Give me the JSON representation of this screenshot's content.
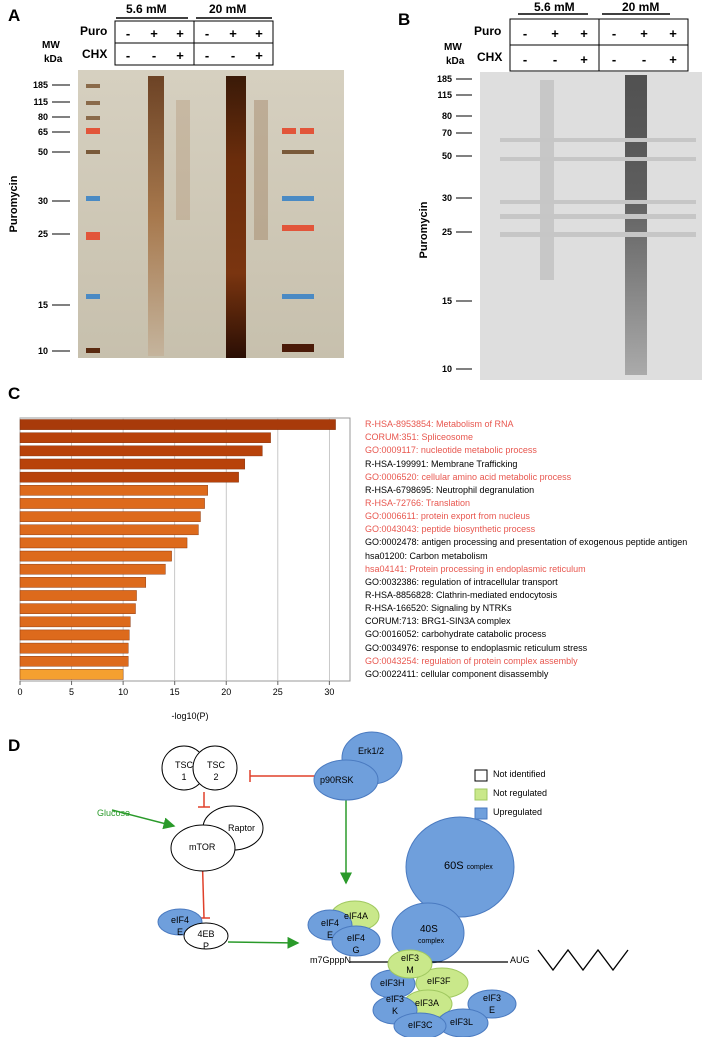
{
  "panelA": {
    "letter": "A",
    "conc_low": "5.6 mM",
    "conc_high": "20 mM",
    "row1_label": "Puro",
    "row2_label": "CHX",
    "mw_label_1": "MW",
    "mw_label_2": "kDa",
    "puro": [
      "-",
      "+",
      "+",
      "-",
      "+",
      "+"
    ],
    "chx": [
      "-",
      "-",
      "+",
      "-",
      "-",
      "+"
    ],
    "markers": [
      "185",
      "115",
      "80",
      "65",
      "50",
      "30",
      "25",
      "15",
      "10"
    ],
    "ylabel": "Puromycin"
  },
  "panelB": {
    "letter": "B",
    "conc_low": "5.6 mM",
    "conc_high": "20 mM",
    "row1_label": "Puro",
    "row2_label": "CHX",
    "mw_label_1": "MW",
    "mw_label_2": "kDa",
    "puro": [
      "-",
      "+",
      "+",
      "-",
      "+",
      "+"
    ],
    "chx": [
      "-",
      "-",
      "+",
      "-",
      "-",
      "+"
    ],
    "markers": [
      "185",
      "115",
      "80",
      "70",
      "50",
      "30",
      "25",
      "15",
      "10"
    ],
    "ylabel": "Puromycin"
  },
  "panelC": {
    "letter": "C"
  },
  "chart_data": {
    "type": "bar",
    "orientation": "horizontal",
    "xlabel": "-log10(P)",
    "xlim": [
      0,
      32
    ],
    "xticks": [
      0,
      5,
      10,
      15,
      20,
      25,
      30
    ],
    "categories": [
      "R-HSA-8953854: Metabolism of RNA",
      "CORUM:351: Spliceosome",
      "GO:0009117: nucleotide metabolic process",
      "R-HSA-199991: Membrane Trafficking",
      "GO:0006520: cellular amino acid metabolic process",
      "R-HSA-6798695: Neutrophil degranulation",
      "R-HSA-72766: Translation",
      "GO:0006611: protein export from nucleus",
      "GO:0043043: peptide biosynthetic process",
      "GO:0002478: antigen processing and presentation of exogenous peptide antigen",
      "hsa01200: Carbon metabolism",
      "hsa04141: Protein processing in endoplasmic reticulum",
      "GO:0032386: regulation of intracellular transport",
      "R-HSA-8856828: Clathrin-mediated endocytosis",
      "R-HSA-166520: Signaling by NTRKs",
      "CORUM:713: BRG1-SIN3A complex",
      "GO:0016052: carbohydrate catabolic process",
      "GO:0034976: response to endoplasmic reticulum stress",
      "GO:0043254: regulation of protein complex assembly",
      "GO:0022411: cellular component disassembly"
    ],
    "values": [
      30.6,
      24.3,
      23.5,
      21.8,
      21.2,
      18.2,
      17.9,
      17.5,
      17.3,
      16.2,
      14.7,
      14.1,
      12.2,
      11.3,
      11.2,
      10.7,
      10.6,
      10.5,
      10.5,
      10.0
    ],
    "highlighted": [
      true,
      true,
      true,
      false,
      true,
      false,
      true,
      true,
      true,
      false,
      false,
      true,
      false,
      false,
      false,
      false,
      false,
      false,
      true,
      false
    ],
    "bar_colors": [
      "#a83a0a",
      "#b8420a",
      "#b8420a",
      "#b8420a",
      "#b8420a",
      "#dd6a1c",
      "#dd6a1c",
      "#dd6a1c",
      "#dd6a1c",
      "#dd6a1c",
      "#dd6a1c",
      "#dd6a1c",
      "#dd6a1c",
      "#dd6a1c",
      "#dd6a1c",
      "#dd6a1c",
      "#dd6a1c",
      "#dd6a1c",
      "#dd6a1c",
      "#f5a030"
    ],
    "highlight_color": "#e8574f"
  },
  "panelD": {
    "letter": "D",
    "nodes": {
      "erk": "Erk1/2",
      "p90rsk": "p90RSK",
      "tsc1": "TSC 1",
      "tsc2": "TSC 2",
      "raptor": "Raptor",
      "mtor": "mTOR",
      "glucose": "Glucose",
      "eif4e_left": "eIF4 E",
      "bp": "4EB P",
      "eif4e": "eIF4 E",
      "eif4a": "eIF4A",
      "eif4g": "eIF4 G",
      "s60": "60S",
      "s60_sub": "complex",
      "s40": "40S",
      "s40_sub": "complex",
      "eif3m": "eIF3 M",
      "eif3f": "eIF3F",
      "eif3h": "eIF3H",
      "eif3k": "eIF3 K",
      "eif3a": "eIF3A",
      "eif3e": "eIF3 E",
      "eif3c": "eIF3C",
      "eif3l": "eIF3L",
      "cap": "m7GpppN",
      "aug": "AUG"
    },
    "legend": [
      {
        "label": "Not identified",
        "color": "#ffffff"
      },
      {
        "label": "Not regulated",
        "color": "#c9e88a"
      },
      {
        "label": "Upregulated",
        "color": "#6f9fdc"
      }
    ]
  }
}
